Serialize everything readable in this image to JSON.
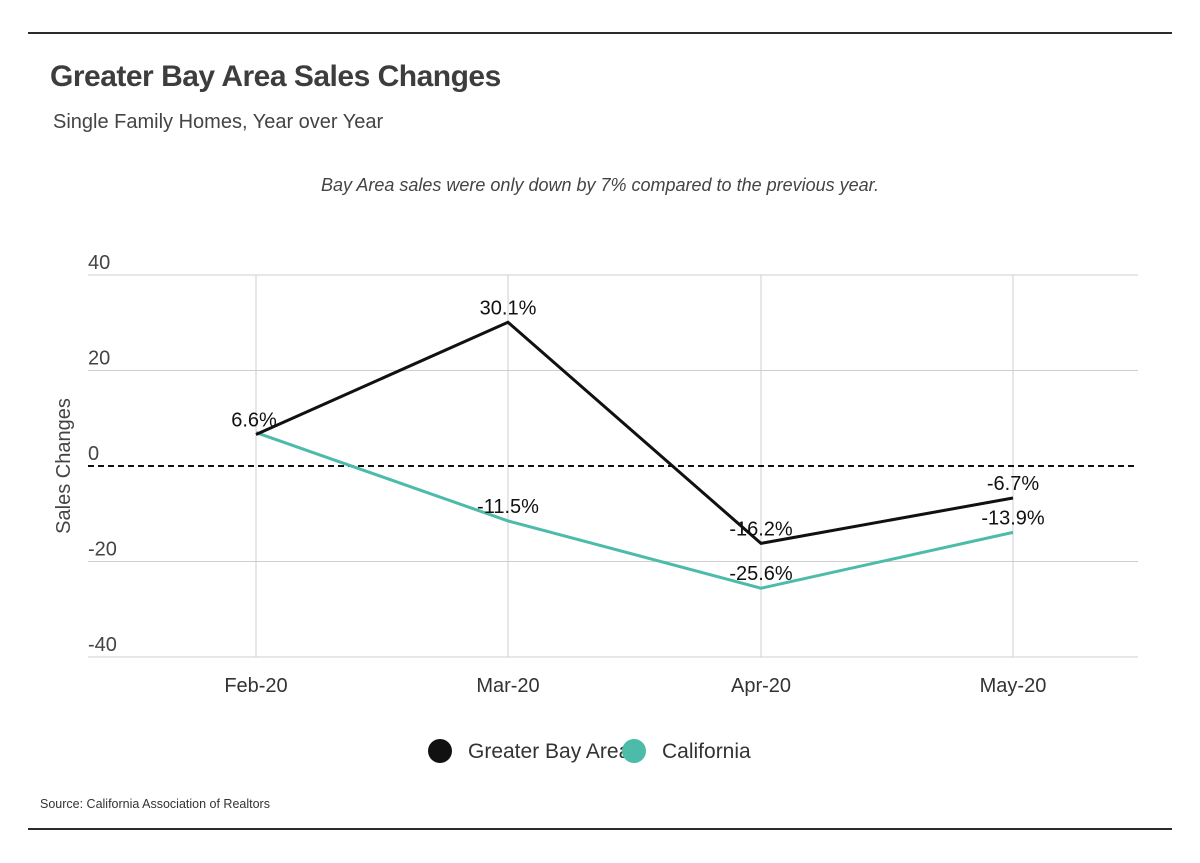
{
  "header": {
    "title": "Greater Bay Area Sales Changes",
    "subtitle": "Single Family Homes, Year over Year",
    "annotation": "Bay Area sales were only down by 7% compared to the previous year."
  },
  "footer": {
    "source": "Source:  California Association of Realtors"
  },
  "colors": {
    "greater_bay_area": "#111111",
    "california": "#4dbbaa",
    "grid": "#cfcfcf",
    "zero_line": "#111111"
  },
  "chart_data": {
    "type": "line",
    "categories": [
      "Feb-20",
      "Mar-20",
      "Apr-20",
      "May-20"
    ],
    "series": [
      {
        "name": "Greater Bay Area",
        "values": [
          6.6,
          30.1,
          -16.2,
          -6.7
        ],
        "labels": [
          "6.6%",
          "30.1%",
          "-16.2%",
          "-6.7%"
        ],
        "color": "#111111"
      },
      {
        "name": "California",
        "values": [
          7.0,
          -11.5,
          -25.6,
          -13.9
        ],
        "labels": [
          "",
          "-11.5%",
          "-25.6%",
          "-13.9%"
        ],
        "color": "#4dbbaa"
      }
    ],
    "ylabel": "Sales Changes",
    "xlabel": "",
    "ylim": [
      -40,
      40
    ],
    "yticks": [
      40,
      20,
      0,
      -20,
      -40
    ],
    "zero_line": "dashed",
    "grid": true,
    "legend": "bottom-center"
  }
}
